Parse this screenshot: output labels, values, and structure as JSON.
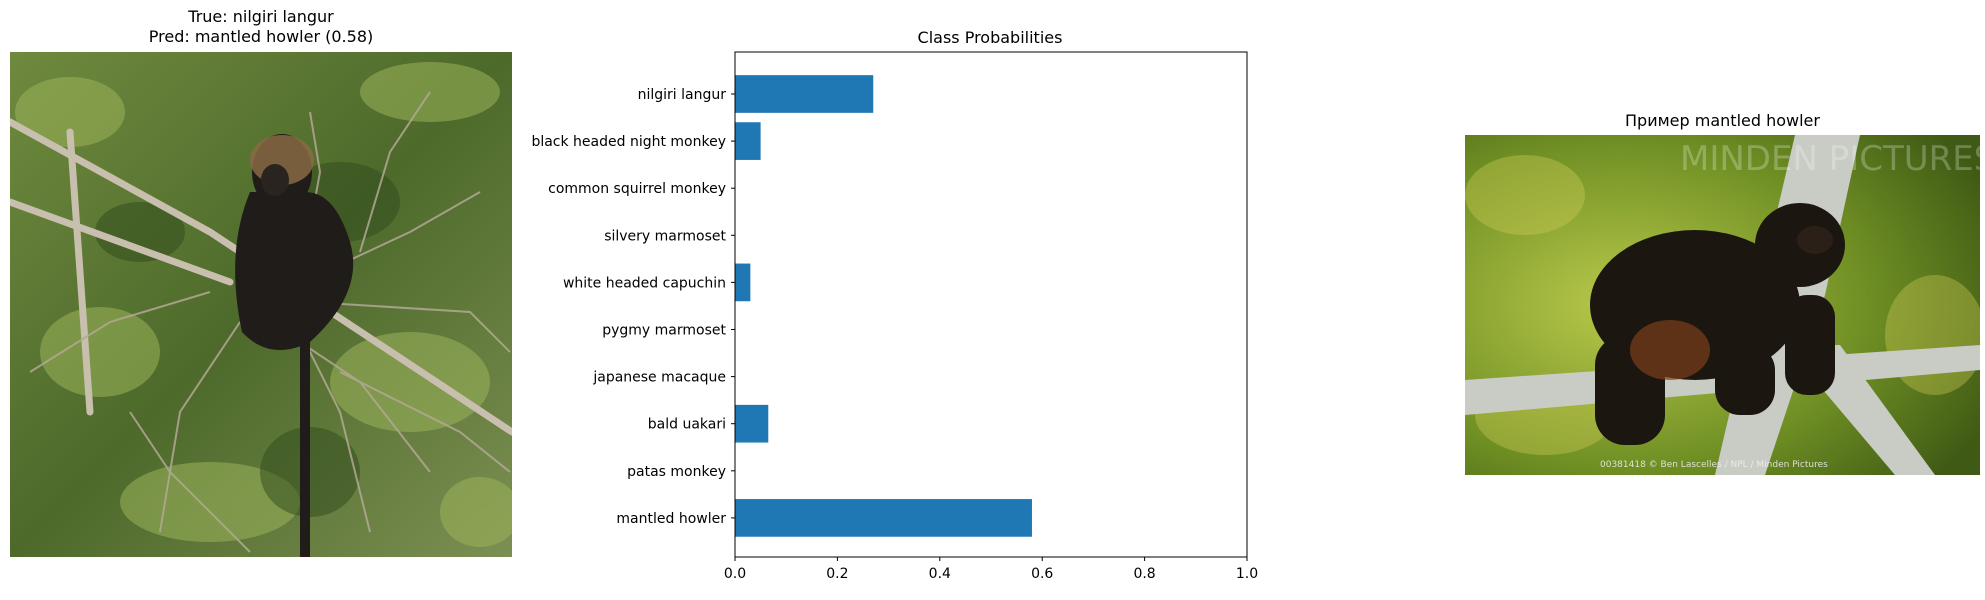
{
  "left_panel": {
    "title_line1": "True: nilgiri langur",
    "title_line2": "Pred: mantled howler (0.58)",
    "image_subject": "nilgiri langur"
  },
  "right_panel": {
    "title": "Пример mantled howler",
    "image_subject": "mantled howler",
    "watermark": "MINDEN PICTURES",
    "credit": "00381418 © Ben Lascelles / NPL / Minden Pictures"
  },
  "chart_data": {
    "type": "bar",
    "orientation": "horizontal",
    "title": "Class Probabilities",
    "categories": [
      "nilgiri langur",
      "black headed night monkey",
      "common squirrel monkey",
      "silvery marmoset",
      "white headed capuchin",
      "pygmy marmoset",
      "japanese macaque",
      "bald uakari",
      "patas monkey",
      "mantled howler"
    ],
    "values": [
      0.27,
      0.05,
      0.0,
      0.0,
      0.03,
      0.0,
      0.0,
      0.065,
      0.0,
      0.58
    ],
    "xlim": [
      0,
      1
    ],
    "xticks": [
      "0.0",
      "0.2",
      "0.4",
      "0.6",
      "0.8",
      "1.0"
    ],
    "xlabel": "",
    "ylabel": "",
    "bar_color": "#1f77b4",
    "grid": false
  }
}
